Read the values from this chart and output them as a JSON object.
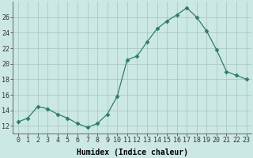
{
  "x": [
    0,
    1,
    2,
    3,
    4,
    5,
    6,
    7,
    8,
    9,
    10,
    11,
    12,
    13,
    14,
    15,
    16,
    17,
    18,
    19,
    20,
    21,
    22,
    23
  ],
  "y": [
    12.5,
    13.0,
    14.5,
    14.2,
    13.5,
    13.0,
    12.3,
    11.8,
    12.3,
    13.5,
    15.8,
    20.5,
    21.0,
    22.8,
    24.5,
    25.5,
    26.3,
    27.2,
    26.0,
    24.2,
    21.8,
    19.0,
    18.5,
    18.0
  ],
  "xlabel": "Humidex (Indice chaleur)",
  "ylim": [
    11,
    28
  ],
  "xlim": [
    -0.5,
    23.5
  ],
  "yticks": [
    12,
    14,
    16,
    18,
    20,
    22,
    24,
    26
  ],
  "xticks": [
    0,
    1,
    2,
    3,
    4,
    5,
    6,
    7,
    8,
    9,
    10,
    11,
    12,
    13,
    14,
    15,
    16,
    17,
    18,
    19,
    20,
    21,
    22,
    23
  ],
  "line_color": "#2d7d6b",
  "marker": "D",
  "marker_size": 2.5,
  "bg_color": "#cce8e4",
  "grid_color": "#aac8c4",
  "xlabel_fontsize": 7,
  "tick_fontsize": 6
}
